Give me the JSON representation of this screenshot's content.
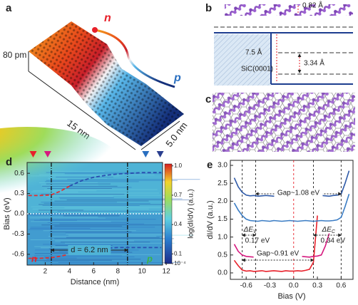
{
  "panels": {
    "a": {
      "label": "a",
      "n": "n",
      "p": "p",
      "height": "80 pm",
      "length": "15 nm",
      "width": "5.0 nm"
    },
    "b": {
      "label": "b",
      "buckling": "0.82 Å",
      "separation": "7.5 Å",
      "spacing": "3.34 Å",
      "substrate": "SiC(0001)"
    },
    "c": {
      "label": "c"
    }
  },
  "chart_data": [
    {
      "type": "heatmap",
      "label": "d",
      "xlabel": "Distance (nm)",
      "ylabel": "Bias (eV)",
      "xlim": [
        0.5,
        11.7
      ],
      "xticks": [
        2,
        4,
        6,
        8,
        10,
        12
      ],
      "ylim": [
        -0.76,
        0.76
      ],
      "yticks": [
        0.6,
        0.3,
        {
          "value": 0,
          "label": "0.0"
        },
        -0.3,
        -0.6
      ],
      "series": [
        {
          "color": "#e03030",
          "x": [
            0.6,
            1.5,
            2.5,
            3.2,
            4.0
          ],
          "values": [
            0.27,
            0.27,
            0.28,
            0.33,
            0.41
          ]
        },
        {
          "color": "#2a4fb0",
          "x": [
            4.0,
            5.0,
            6.0,
            7.0,
            8.0,
            9.0,
            10.0,
            11.6
          ],
          "values": [
            0.41,
            0.49,
            0.54,
            0.57,
            0.59,
            0.6,
            0.61,
            0.61
          ]
        },
        {
          "color": "#e03030",
          "x": [
            0.6,
            1.5,
            2.5,
            3.2,
            4.0
          ],
          "values": [
            -0.66,
            -0.66,
            -0.65,
            -0.63,
            -0.6
          ]
        },
        {
          "color": "#2a4fb0",
          "x": [
            4.0,
            5.0,
            6.0,
            7.0,
            8.0,
            9.0,
            10.0,
            11.6
          ],
          "values": [
            -0.6,
            -0.55,
            -0.52,
            -0.51,
            -0.5,
            -0.5,
            -0.5,
            -0.5
          ]
        }
      ],
      "vlines": [
        2.5,
        8.8
      ],
      "hlines": [
        0
      ],
      "markers": [
        {
          "x": 1.0,
          "color": "#e8202a"
        },
        {
          "x": 2.2,
          "color": "#d6187e"
        },
        {
          "x": 10.3,
          "color": "#2a6fc0"
        },
        {
          "x": 11.5,
          "color": "#2a3f8f"
        }
      ],
      "annotations": [
        "n",
        "p",
        "d = 6.2 nm"
      ],
      "colorbar": {
        "label": "log(dI/dV) (a.u.)",
        "lim": [
          0,
          1.02
        ],
        "ticks": [
          {
            "value": 1,
            "label": "1.0"
          },
          0.7,
          0.4,
          0.1,
          {
            "value": 0.0001,
            "label": "10⁻⁴"
          }
        ]
      }
    },
    {
      "type": "line",
      "label": "e",
      "xlabel": "Bias (V)",
      "ylabel": "dI/dV (a.u.)",
      "xlim": [
        -0.8,
        0.75
      ],
      "xticks": [
        -0.6,
        -0.3,
        {
          "value": 0,
          "label": "0.0"
        },
        0.3,
        0.6
      ],
      "ylim": [
        -0.18,
        3.14
      ],
      "yticks": [
        {
          "value": 0,
          "label": "0.0"
        },
        0.5,
        {
          "value": 1,
          "label": "1.0"
        },
        1.5,
        {
          "value": 2,
          "label": "2.0"
        },
        2.5,
        {
          "value": 3,
          "label": "3.0"
        }
      ],
      "x": [
        -0.75,
        -0.7,
        -0.65,
        -0.6,
        -0.55,
        -0.5,
        -0.45,
        -0.4,
        -0.35,
        -0.3,
        -0.25,
        -0.2,
        -0.15,
        -0.1,
        -0.05,
        0,
        0.05,
        0.1,
        0.15,
        0.2,
        0.25,
        0.3,
        0.35,
        0.4,
        0.45,
        0.5,
        0.55,
        0.6,
        0.65,
        0.7
      ],
      "series": [
        {
          "color": "#e8202a",
          "values": [
            0.35,
            0.2,
            0.08,
            0.05,
            0.06,
            0.04,
            0.05,
            0.06,
            0.04,
            0.05,
            0.06,
            0.05,
            0.04,
            0.06,
            0.05,
            0.05,
            0.06,
            0.05,
            0.07,
            0.1,
            0.3,
            1.6,
            null,
            null,
            null,
            null,
            null,
            null,
            null,
            null
          ]
        },
        {
          "color": "#d6187e",
          "values": [
            0.8,
            0.6,
            0.5,
            0.46,
            0.45,
            0.44,
            0.45,
            0.46,
            0.44,
            0.45,
            0.46,
            0.45,
            0.44,
            0.46,
            0.45,
            0.44,
            0.45,
            0.46,
            0.45,
            0.44,
            0.46,
            0.47,
            0.5,
            0.75,
            1.1,
            null,
            null,
            null,
            null,
            null
          ]
        },
        {
          "color": "#3a7cc4",
          "values": [
            1.95,
            1.75,
            1.6,
            1.5,
            1.46,
            1.45,
            1.44,
            1.46,
            1.45,
            1.44,
            1.46,
            1.45,
            1.44,
            1.45,
            1.46,
            1.45,
            1.44,
            1.45,
            1.46,
            1.45,
            1.44,
            1.45,
            1.46,
            1.45,
            1.45,
            1.46,
            1.48,
            1.55,
            1.85,
            2.2
          ]
        },
        {
          "color": "#2f5aa8",
          "values": [
            2.65,
            2.4,
            2.25,
            2.17,
            2.15,
            2.16,
            2.14,
            2.15,
            2.16,
            2.15,
            2.14,
            2.16,
            2.15,
            2.14,
            2.15,
            2.16,
            2.15,
            2.14,
            2.16,
            2.15,
            2.14,
            2.15,
            2.16,
            2.15,
            2.14,
            2.16,
            2.17,
            2.2,
            2.5,
            2.85
          ]
        }
      ],
      "vlines": [
        {
          "value": -0.65,
          "color": "#222222"
        },
        {
          "value": -0.48,
          "color": "#222222"
        },
        {
          "value": 0,
          "color": "#e8202a"
        },
        {
          "value": 0.25,
          "color": "#222222"
        },
        {
          "value": 0.6,
          "color": "#222222"
        }
      ],
      "annotations": [
        "Gap~1.08 eV",
        {
          "text": "ΔE",
          "sub": "V"
        },
        "0.17 eV",
        {
          "text": "ΔE",
          "sub": "C"
        },
        "0.34 eV",
        "Gap~0.91 eV"
      ]
    }
  ]
}
